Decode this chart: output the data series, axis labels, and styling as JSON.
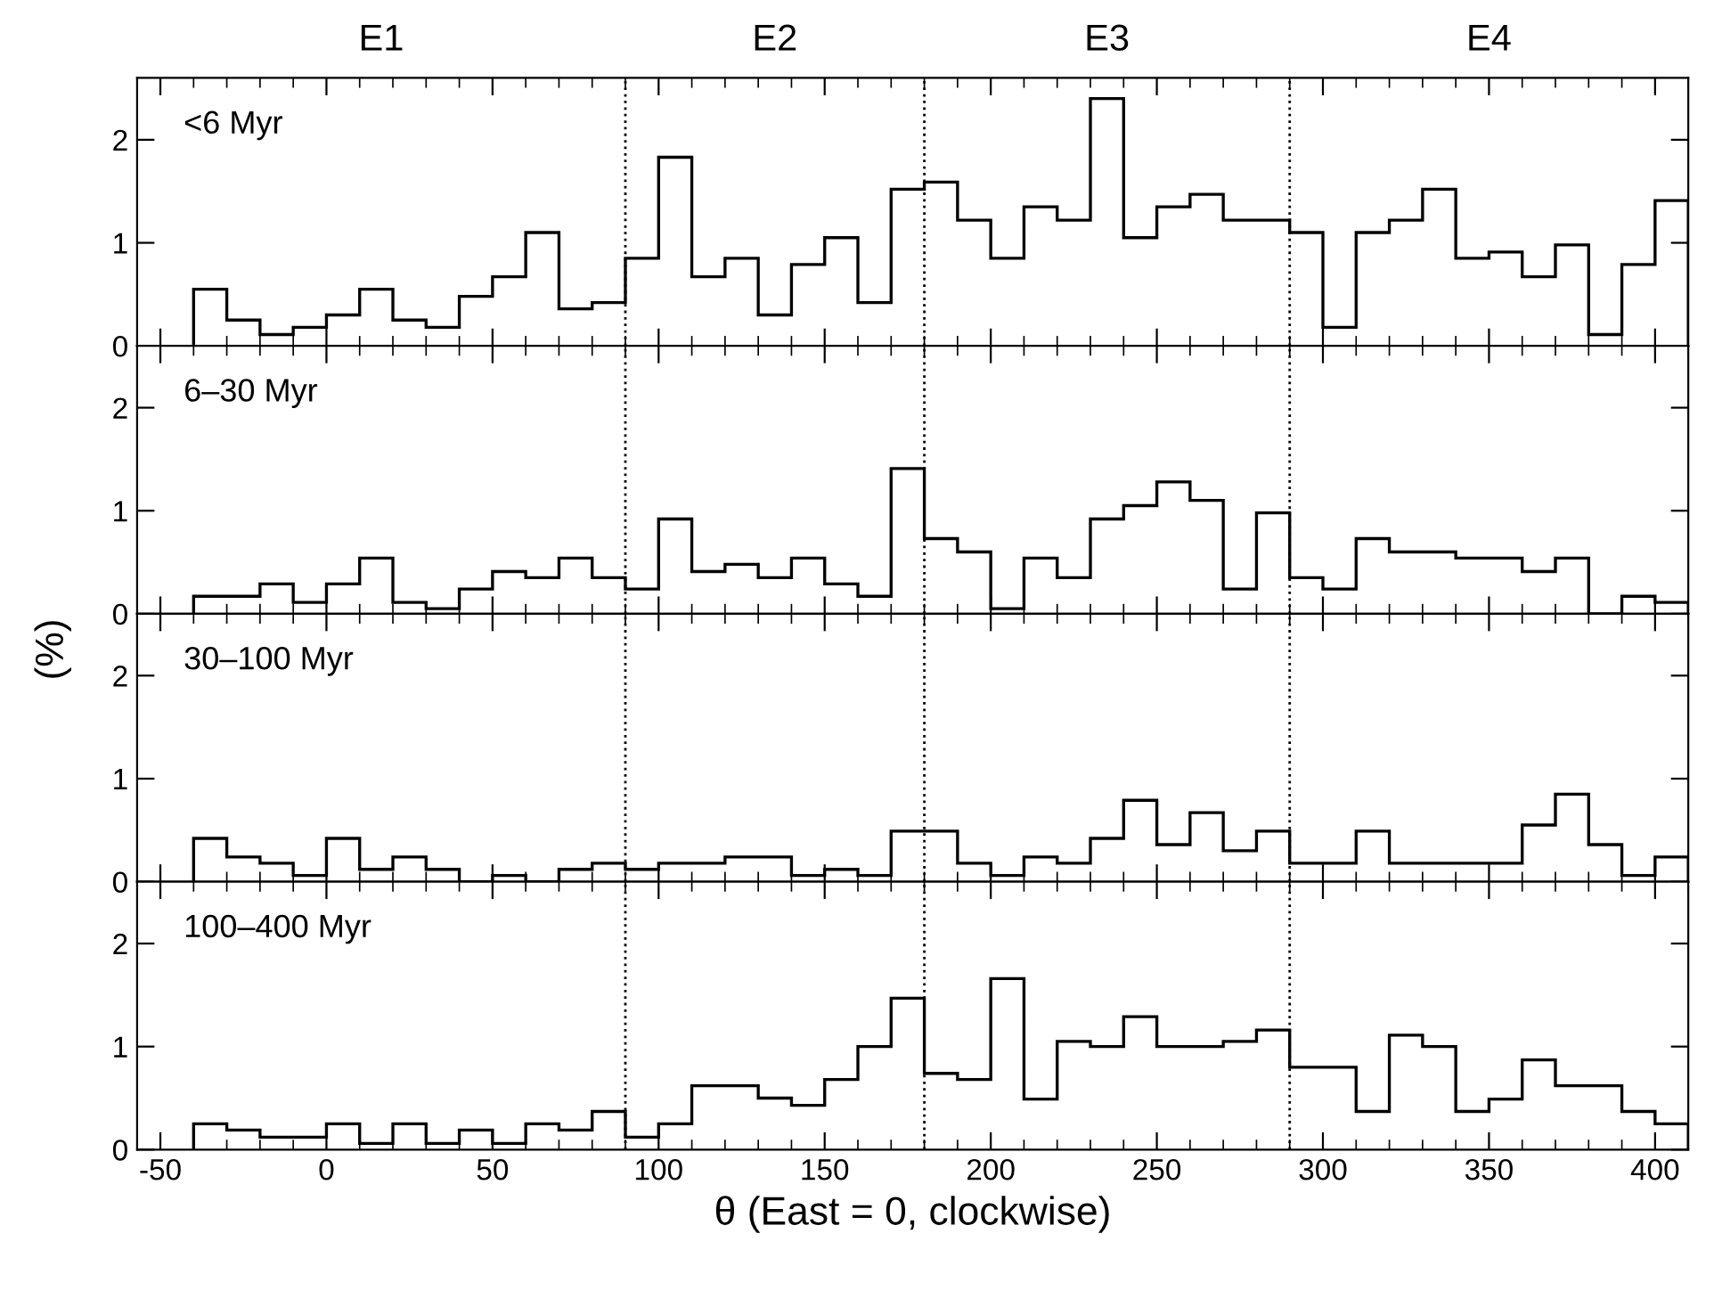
{
  "chart_data": [
    {
      "type": "histogram",
      "annotations": [
        "<6 Myr",
        "E1",
        "E2",
        "E3",
        "E4"
      ],
      "bins": [
        -40,
        -30,
        -20,
        -10,
        0,
        10,
        20,
        30,
        40,
        50,
        60,
        70,
        80,
        90,
        100,
        110,
        120,
        130,
        140,
        150,
        160,
        170,
        180,
        190,
        200,
        210,
        220,
        230,
        240,
        250,
        260,
        270,
        280,
        290,
        300,
        310,
        320,
        330,
        340,
        350,
        360,
        370,
        380,
        390,
        400,
        410
      ],
      "values": [
        0.55,
        0.25,
        0.11,
        0.18,
        0.3,
        0.55,
        0.25,
        0.18,
        0.48,
        0.67,
        1.1,
        0.36,
        0.42,
        0.85,
        1.83,
        0.67,
        0.85,
        0.3,
        0.79,
        1.05,
        0.42,
        1.52,
        1.59,
        1.22,
        0.85,
        1.35,
        1.22,
        2.4,
        1.05,
        1.35,
        1.47,
        1.22,
        1.22,
        1.1,
        0.18,
        1.1,
        1.22,
        1.52,
        0.85,
        0.91,
        0.67,
        0.98,
        0.11,
        0.79,
        1.41
      ],
      "color": "#000000",
      "xlim": [
        -57,
        410
      ],
      "ylim": [
        0,
        2.6
      ],
      "yticks": [
        0,
        1,
        2
      ],
      "xticks": [
        -50,
        0,
        50,
        100,
        150,
        200,
        250,
        300,
        350,
        400
      ],
      "tick_labels": "y",
      "ref_lines": [
        {
          "axis": "x",
          "value": 90,
          "line_style": "dotted"
        },
        {
          "axis": "x",
          "value": 180,
          "line_style": "dotted"
        },
        {
          "axis": "x",
          "value": 290,
          "line_style": "dotted"
        }
      ],
      "grid": false,
      "legend": false
    },
    {
      "type": "histogram",
      "annotations": [
        "6–30 Myr"
      ],
      "ylabel": "(%)",
      "bins": [
        -40,
        -30,
        -20,
        -10,
        0,
        10,
        20,
        30,
        40,
        50,
        60,
        70,
        80,
        90,
        100,
        110,
        120,
        130,
        140,
        150,
        160,
        170,
        180,
        190,
        200,
        210,
        220,
        230,
        240,
        250,
        260,
        270,
        280,
        290,
        300,
        310,
        320,
        330,
        340,
        350,
        360,
        370,
        380,
        390,
        400,
        410
      ],
      "values": [
        0.17,
        0.17,
        0.29,
        0.11,
        0.29,
        0.54,
        0.11,
        0.05,
        0.24,
        0.41,
        0.35,
        0.54,
        0.35,
        0.24,
        0.92,
        0.41,
        0.48,
        0.35,
        0.54,
        0.29,
        0.17,
        1.41,
        0.73,
        0.6,
        0.05,
        0.54,
        0.35,
        0.92,
        1.05,
        1.28,
        1.1,
        0.24,
        0.98,
        0.35,
        0.24,
        0.73,
        0.6,
        0.6,
        0.54,
        0.54,
        0.41,
        0.54,
        0,
        0.17,
        0.11
      ],
      "color": "#000000",
      "xlim": [
        -57,
        410
      ],
      "ylim": [
        0,
        2.6
      ],
      "yticks": [
        0,
        1,
        2
      ],
      "xticks": [
        -50,
        0,
        50,
        100,
        150,
        200,
        250,
        300,
        350,
        400
      ],
      "tick_labels": "y",
      "ref_lines": [
        {
          "axis": "x",
          "value": 90,
          "line_style": "dotted"
        },
        {
          "axis": "x",
          "value": 180,
          "line_style": "dotted"
        },
        {
          "axis": "x",
          "value": 290,
          "line_style": "dotted"
        }
      ],
      "grid": false,
      "legend": false
    },
    {
      "type": "histogram",
      "annotations": [
        "30–100 Myr"
      ],
      "bins": [
        -40,
        -30,
        -20,
        -10,
        0,
        10,
        20,
        30,
        40,
        50,
        60,
        70,
        80,
        90,
        100,
        110,
        120,
        130,
        140,
        150,
        160,
        170,
        180,
        190,
        200,
        210,
        220,
        230,
        240,
        250,
        260,
        270,
        280,
        290,
        300,
        310,
        320,
        330,
        340,
        350,
        360,
        370,
        380,
        390,
        400,
        410
      ],
      "values": [
        0.42,
        0.24,
        0.18,
        0.06,
        0.42,
        0.12,
        0.24,
        0.12,
        0,
        0.06,
        0,
        0.12,
        0.18,
        0.12,
        0.18,
        0.18,
        0.24,
        0.24,
        0.06,
        0.12,
        0.06,
        0.49,
        0.49,
        0.18,
        0.06,
        0.24,
        0.18,
        0.42,
        0.79,
        0.36,
        0.67,
        0.3,
        0.49,
        0.18,
        0.18,
        0.49,
        0.18,
        0.18,
        0.18,
        0.18,
        0.55,
        0.85,
        0.36,
        0.06,
        0.24
      ],
      "color": "#000000",
      "xlim": [
        -57,
        410
      ],
      "ylim": [
        0,
        2.6
      ],
      "yticks": [
        0,
        1,
        2
      ],
      "xticks": [
        -50,
        0,
        50,
        100,
        150,
        200,
        250,
        300,
        350,
        400
      ],
      "tick_labels": "y",
      "ref_lines": [
        {
          "axis": "x",
          "value": 90,
          "line_style": "dotted"
        },
        {
          "axis": "x",
          "value": 180,
          "line_style": "dotted"
        },
        {
          "axis": "x",
          "value": 290,
          "line_style": "dotted"
        }
      ],
      "grid": false,
      "legend": false
    },
    {
      "type": "histogram",
      "annotations": [
        "100–400 Myr"
      ],
      "xlabel": "θ (East = 0, clockwise)",
      "bins": [
        -40,
        -30,
        -20,
        -10,
        0,
        10,
        20,
        30,
        40,
        50,
        60,
        70,
        80,
        90,
        100,
        110,
        120,
        130,
        140,
        150,
        160,
        170,
        180,
        190,
        200,
        210,
        220,
        230,
        240,
        250,
        260,
        270,
        280,
        290,
        300,
        310,
        320,
        330,
        340,
        350,
        360,
        370,
        380,
        390,
        400,
        410
      ],
      "values": [
        0.25,
        0.19,
        0.12,
        0.12,
        0.25,
        0.06,
        0.25,
        0.06,
        0.19,
        0.06,
        0.25,
        0.19,
        0.37,
        0.12,
        0.25,
        0.62,
        0.62,
        0.5,
        0.43,
        0.68,
        1.0,
        1.47,
        0.74,
        0.68,
        1.66,
        0.49,
        1.05,
        1.0,
        1.29,
        1.0,
        1.0,
        1.05,
        1.16,
        0.8,
        0.8,
        0.37,
        1.11,
        1.0,
        0.37,
        0.49,
        0.87,
        0.62,
        0.62,
        0.37,
        0.25
      ],
      "color": "#000000",
      "xlim": [
        -57,
        410
      ],
      "ylim": [
        0,
        2.6
      ],
      "yticks": [
        0,
        1,
        2
      ],
      "xticks": [
        -50,
        0,
        50,
        100,
        150,
        200,
        250,
        300,
        350,
        400
      ],
      "ref_lines": [
        {
          "axis": "x",
          "value": 90,
          "line_style": "dotted"
        },
        {
          "axis": "x",
          "value": 180,
          "line_style": "dotted"
        },
        {
          "axis": "x",
          "value": 290,
          "line_style": "dotted"
        }
      ],
      "grid": false,
      "legend": false
    }
  ]
}
